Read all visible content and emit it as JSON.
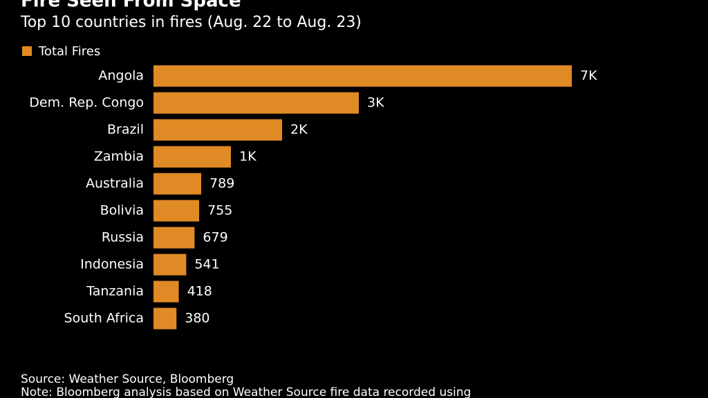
{
  "chart_data": {
    "type": "bar",
    "orientation": "horizontal",
    "title": "Fire Seen From Space",
    "subtitle": "Top 10 countries in fires (Aug. 22 to Aug. 23)",
    "categories": [
      "Angola",
      "Dem. Rep. Congo",
      "Brazil",
      "Zambia",
      "Australia",
      "Bolivia",
      "Russia",
      "Indonesia",
      "Tanzania",
      "South Africa"
    ],
    "series": [
      {
        "name": "Total Fires",
        "color": "#e08a25",
        "values": [
          6914,
          3394,
          2126,
          1280,
          789,
          755,
          679,
          541,
          418,
          380
        ],
        "value_labels": [
          "7K",
          "3K",
          "2K",
          "1K",
          "789",
          "755",
          "679",
          "541",
          "418",
          "380"
        ]
      }
    ],
    "source": "Source: Weather Source, Bloomberg",
    "note": "Note: Bloomberg analysis based on Weather Source fire data recorded using"
  }
}
